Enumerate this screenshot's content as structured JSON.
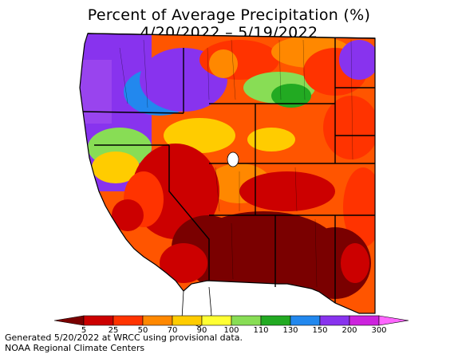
{
  "title": "Percent of Average Precipitation (%)",
  "date_range": "4/20/2022 – 5/19/2022",
  "legend": {
    "ticks": [
      "5",
      "25",
      "50",
      "70",
      "90",
      "100",
      "110",
      "130",
      "150",
      "200",
      "300"
    ],
    "colors": [
      "#7a0000",
      "#cc0000",
      "#ff3300",
      "#ff8800",
      "#ffcc00",
      "#ffff33",
      "#88dd55",
      "#22aa22",
      "#2288ee",
      "#8833ee",
      "#cc22dd",
      "#ff66ff"
    ]
  },
  "footer": {
    "line1": "Generated 5/20/2022 at WRCC using provisional data.",
    "line2": "NOAA Regional Climate Centers"
  }
}
